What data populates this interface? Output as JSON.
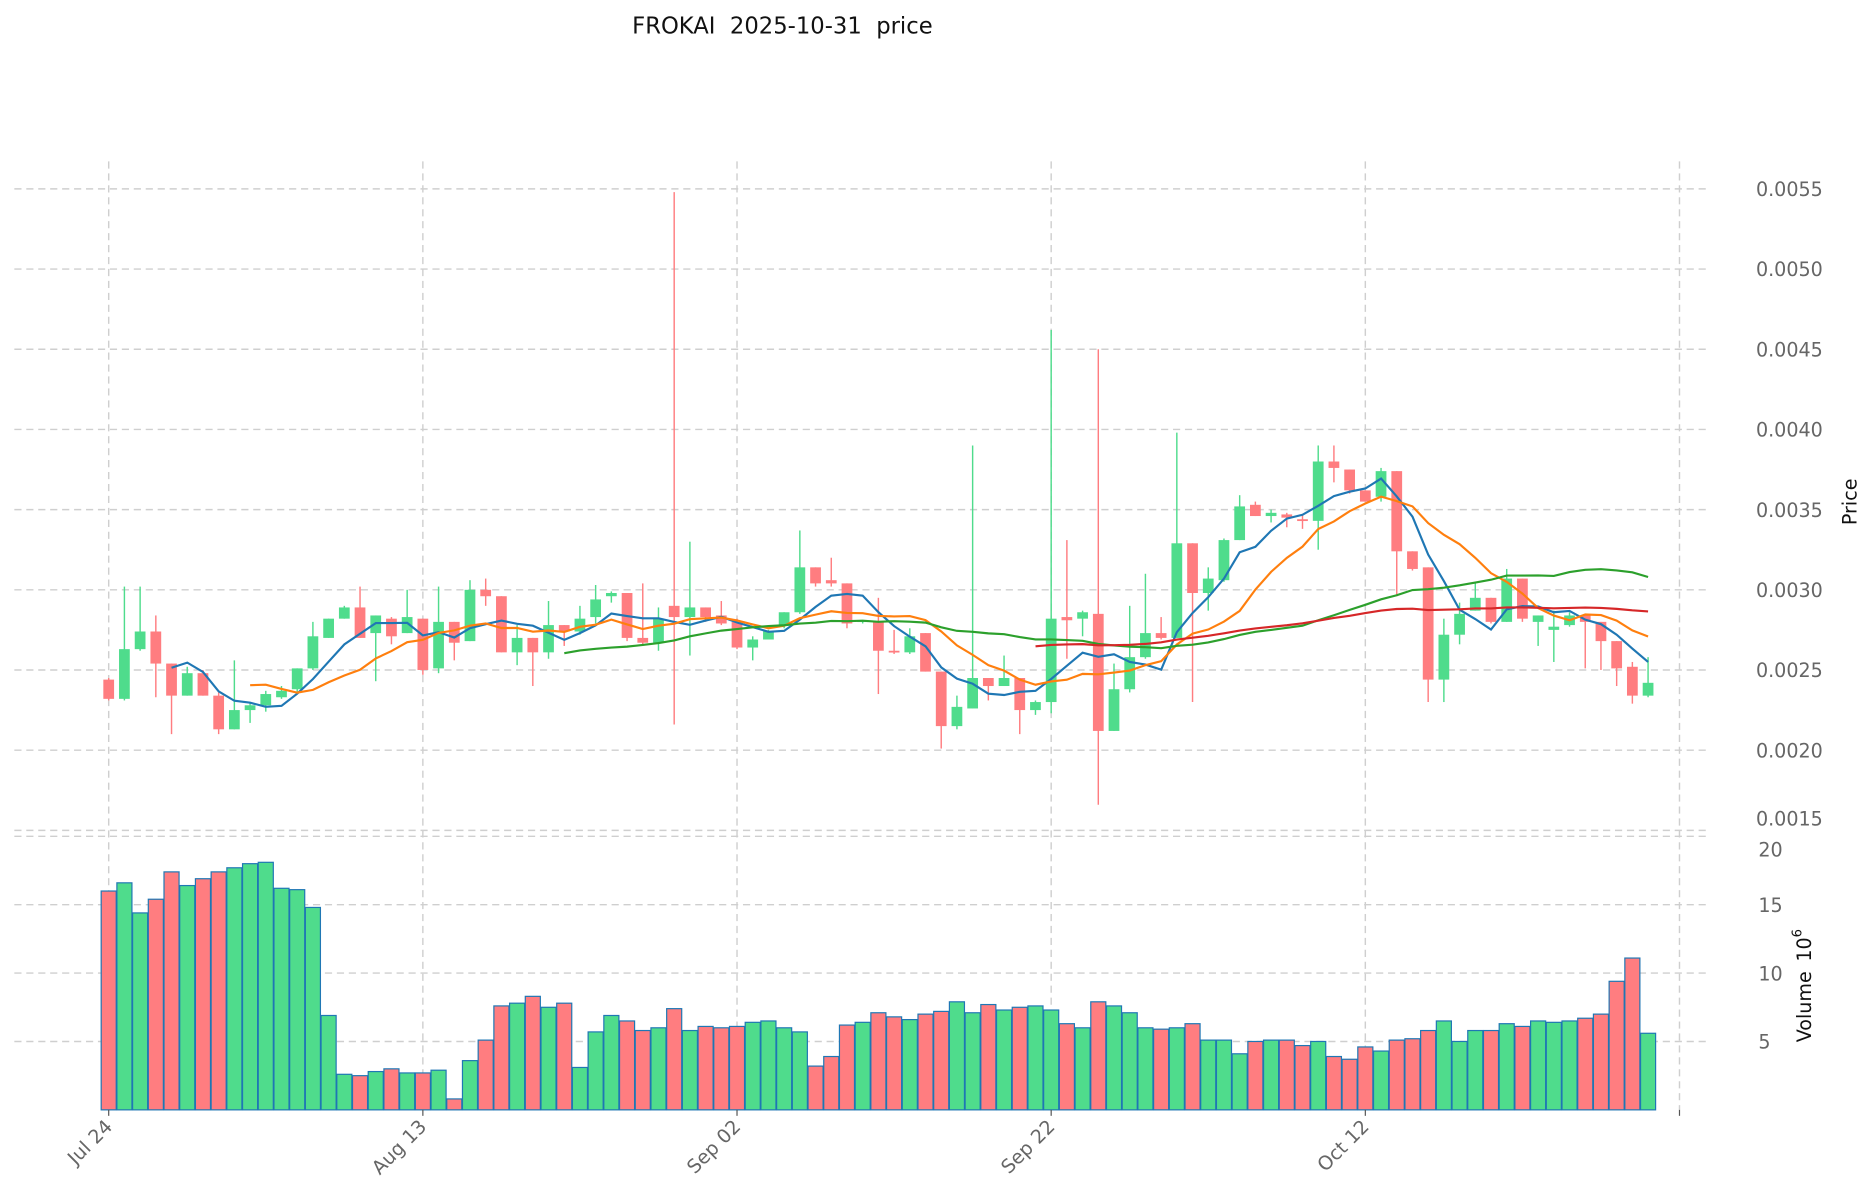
{
  "chart_data": {
    "type": "candlestick",
    "title": "FROKAI  2025-10-31  price",
    "ylabel": "Price",
    "volume_label": "Volume",
    "volume_exponent_label": "10",
    "volume_exponent": "6",
    "start_date": "2025-07-24",
    "x_tick_labels": [
      "Jul 24",
      "Aug 13",
      "Sep 02",
      "Sep 22",
      "Oct 12",
      ""
    ],
    "x_tick_day_offsets": [
      0,
      20,
      40,
      60,
      80,
      100
    ],
    "price_ticks": [
      "0.0015",
      "0.0020",
      "0.0025",
      "0.0030",
      "0.0035",
      "0.0040",
      "0.0045",
      "0.0050",
      "0.0055"
    ],
    "price_ylim": [
      0.0015,
      0.0055
    ],
    "volume_ticks": [
      "5",
      "10",
      "15",
      "20"
    ],
    "volume_ylim": [
      0,
      20
    ],
    "volume_unit": 1000000,
    "colors": {
      "up": "#4fdc8c",
      "down": "#ff7d80",
      "volume_edge": "#1f77b4"
    },
    "moving_averages": [
      {
        "period": 5,
        "color": "#1f77b4"
      },
      {
        "period": 10,
        "color": "#ff7f0e"
      },
      {
        "period": 30,
        "color": "#2ca02c"
      },
      {
        "period": 60,
        "color": "#d62728"
      }
    ],
    "ohlcv_note": "open, high, low, close in units of 0.001; volume in millions",
    "ohlcv": [
      [
        2.44,
        2.45,
        2.31,
        2.32,
        16.0
      ],
      [
        2.32,
        3.02,
        2.31,
        2.63,
        16.6
      ],
      [
        2.63,
        3.02,
        2.62,
        2.74,
        14.4
      ],
      [
        2.74,
        2.84,
        2.33,
        2.54,
        15.4
      ],
      [
        2.54,
        2.54,
        2.1,
        2.34,
        17.4
      ],
      [
        2.34,
        2.52,
        2.34,
        2.48,
        16.4
      ],
      [
        2.48,
        2.5,
        2.34,
        2.34,
        16.9
      ],
      [
        2.34,
        2.36,
        2.1,
        2.13,
        17.4
      ],
      [
        2.13,
        2.56,
        2.13,
        2.25,
        17.7
      ],
      [
        2.25,
        2.3,
        2.17,
        2.28,
        18.0
      ],
      [
        2.28,
        2.37,
        2.24,
        2.35,
        18.1
      ],
      [
        2.33,
        2.4,
        2.32,
        2.37,
        16.2
      ],
      [
        2.38,
        2.51,
        2.36,
        2.51,
        16.1
      ],
      [
        2.51,
        2.8,
        2.5,
        2.71,
        14.8
      ],
      [
        2.7,
        2.82,
        2.7,
        2.82,
        6.9
      ],
      [
        2.82,
        2.9,
        2.82,
        2.89,
        2.6
      ],
      [
        2.89,
        3.02,
        2.7,
        2.7,
        2.5
      ],
      [
        2.73,
        2.84,
        2.43,
        2.84,
        2.8
      ],
      [
        2.82,
        2.83,
        2.66,
        2.71,
        3.0
      ],
      [
        2.73,
        3.0,
        2.73,
        2.83,
        2.7
      ],
      [
        2.82,
        2.82,
        2.47,
        2.5,
        2.7
      ],
      [
        2.51,
        3.02,
        2.48,
        2.8,
        2.9
      ],
      [
        2.8,
        2.8,
        2.56,
        2.67,
        0.8
      ],
      [
        2.68,
        3.06,
        2.68,
        3.0,
        3.6
      ],
      [
        3.0,
        3.07,
        2.9,
        2.96,
        5.1
      ],
      [
        2.96,
        2.96,
        2.61,
        2.61,
        7.6
      ],
      [
        2.61,
        2.78,
        2.53,
        2.7,
        7.8
      ],
      [
        2.7,
        2.7,
        2.4,
        2.61,
        8.3
      ],
      [
        2.61,
        2.93,
        2.57,
        2.78,
        7.5
      ],
      [
        2.78,
        2.78,
        2.65,
        2.74,
        7.8
      ],
      [
        2.74,
        2.9,
        2.72,
        2.82,
        3.1
      ],
      [
        2.83,
        3.03,
        2.79,
        2.94,
        5.7
      ],
      [
        2.96,
        2.99,
        2.92,
        2.98,
        6.9
      ],
      [
        2.98,
        2.98,
        2.68,
        2.7,
        6.5
      ],
      [
        2.7,
        3.04,
        2.65,
        2.67,
        5.8
      ],
      [
        2.67,
        2.89,
        2.62,
        2.82,
        6.0
      ],
      [
        2.9,
        5.48,
        2.16,
        2.83,
        7.4
      ],
      [
        2.83,
        3.3,
        2.59,
        2.89,
        5.8
      ],
      [
        2.89,
        2.89,
        2.8,
        2.83,
        6.1
      ],
      [
        2.84,
        2.93,
        2.78,
        2.79,
        6.0
      ],
      [
        2.8,
        2.82,
        2.63,
        2.64,
        6.1
      ],
      [
        2.64,
        2.71,
        2.56,
        2.69,
        6.4
      ],
      [
        2.69,
        2.75,
        2.69,
        2.74,
        6.5
      ],
      [
        2.78,
        2.86,
        2.76,
        2.86,
        6.0
      ],
      [
        2.86,
        3.37,
        2.85,
        3.14,
        5.7
      ],
      [
        3.14,
        3.14,
        3.02,
        3.04,
        3.2
      ],
      [
        3.06,
        3.2,
        3.02,
        3.04,
        3.9
      ],
      [
        3.04,
        3.04,
        2.76,
        2.79,
        6.2
      ],
      [
        2.8,
        2.81,
        2.79,
        2.81,
        6.4
      ],
      [
        2.8,
        2.95,
        2.35,
        2.62,
        7.1
      ],
      [
        2.62,
        2.75,
        2.6,
        2.61,
        6.8
      ],
      [
        2.61,
        2.76,
        2.6,
        2.71,
        6.6
      ],
      [
        2.73,
        2.73,
        2.49,
        2.49,
        7.0
      ],
      [
        2.49,
        2.49,
        2.01,
        2.15,
        7.2
      ],
      [
        2.15,
        2.34,
        2.13,
        2.27,
        7.9
      ],
      [
        2.26,
        3.9,
        2.26,
        2.45,
        7.1
      ],
      [
        2.45,
        2.45,
        2.31,
        2.4,
        7.7
      ],
      [
        2.4,
        2.59,
        2.4,
        2.45,
        7.3
      ],
      [
        2.45,
        2.45,
        2.1,
        2.25,
        7.5
      ],
      [
        2.25,
        2.31,
        2.22,
        2.3,
        7.6
      ],
      [
        2.3,
        4.62,
        2.23,
        2.82,
        7.3
      ],
      [
        2.83,
        3.31,
        2.57,
        2.81,
        6.3
      ],
      [
        2.82,
        2.87,
        2.71,
        2.86,
        6.0
      ],
      [
        2.85,
        4.5,
        1.66,
        2.12,
        7.9
      ],
      [
        2.12,
        2.54,
        2.12,
        2.38,
        7.6
      ],
      [
        2.38,
        2.9,
        2.36,
        2.58,
        7.1
      ],
      [
        2.58,
        3.1,
        2.57,
        2.73,
        6.0
      ],
      [
        2.73,
        2.83,
        2.69,
        2.7,
        5.9
      ],
      [
        2.7,
        3.98,
        2.7,
        3.29,
        6.0
      ],
      [
        3.29,
        3.29,
        2.3,
        2.98,
        6.3
      ],
      [
        2.98,
        3.14,
        2.87,
        3.07,
        5.1
      ],
      [
        3.06,
        3.32,
        3.05,
        3.31,
        5.1
      ],
      [
        3.31,
        3.59,
        3.31,
        3.52,
        4.1
      ],
      [
        3.53,
        3.55,
        3.46,
        3.46,
        5.0
      ],
      [
        3.46,
        3.5,
        3.42,
        3.48,
        5.1
      ],
      [
        3.47,
        3.48,
        3.39,
        3.45,
        5.1
      ],
      [
        3.44,
        3.47,
        3.38,
        3.43,
        4.7
      ],
      [
        3.43,
        3.9,
        3.25,
        3.8,
        5.0
      ],
      [
        3.8,
        3.9,
        3.67,
        3.76,
        3.9
      ],
      [
        3.75,
        3.75,
        3.6,
        3.62,
        3.7
      ],
      [
        3.62,
        3.62,
        3.55,
        3.55,
        4.6
      ],
      [
        3.58,
        3.76,
        3.55,
        3.74,
        4.3
      ],
      [
        3.74,
        3.74,
        2.96,
        3.24,
        5.1
      ],
      [
        3.24,
        3.24,
        3.12,
        3.13,
        5.2
      ],
      [
        3.14,
        3.14,
        2.3,
        2.44,
        5.8
      ],
      [
        2.44,
        2.82,
        2.3,
        2.72,
        6.5
      ],
      [
        2.72,
        2.92,
        2.66,
        2.85,
        5.0
      ],
      [
        2.87,
        3.05,
        2.87,
        2.95,
        5.8
      ],
      [
        2.95,
        2.95,
        2.79,
        2.8,
        5.8
      ],
      [
        2.8,
        3.13,
        2.8,
        3.07,
        6.3
      ],
      [
        3.07,
        3.07,
        2.8,
        2.82,
        6.1
      ],
      [
        2.8,
        2.84,
        2.65,
        2.84,
        6.5
      ],
      [
        2.75,
        2.87,
        2.55,
        2.77,
        6.4
      ],
      [
        2.78,
        2.86,
        2.77,
        2.84,
        6.5
      ],
      [
        2.84,
        2.84,
        2.51,
        2.8,
        6.7
      ],
      [
        2.8,
        2.8,
        2.5,
        2.68,
        7.0
      ],
      [
        2.68,
        2.68,
        2.4,
        2.51,
        9.4
      ],
      [
        2.52,
        2.55,
        2.29,
        2.34,
        11.1
      ],
      [
        2.34,
        2.58,
        2.33,
        2.42,
        5.6
      ]
    ]
  }
}
